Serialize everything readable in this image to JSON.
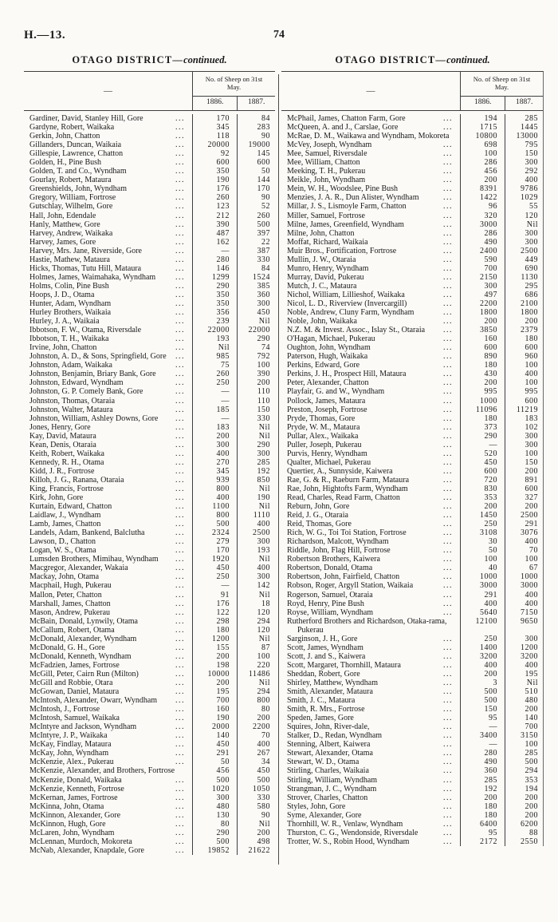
{
  "page": {
    "doc_ref": "H.—13.",
    "page_number": "74"
  },
  "table_header": {
    "name_placeholder": "—",
    "sheep_header": "No. of Sheep on 31st May.",
    "year1": "1886.",
    "year2": "1887."
  },
  "columns": [
    {
      "title_main": "OTAGO DISTRICT",
      "title_dash": "—",
      "title_cont": "continued.",
      "rows": [
        [
          "Gardiner, David, Stanley Hill, Gore",
          "170",
          "84"
        ],
        [
          "Gardyne, Robert, Waikaka",
          "345",
          "283"
        ],
        [
          "Gerkin, John, Chatton",
          "118",
          "90"
        ],
        [
          "Gillanders, Duncan, Waikaia",
          "20000",
          "19000"
        ],
        [
          "Gillespie, Lawrence, Chatton",
          "92",
          "145"
        ],
        [
          "Golden, H., Pine Bush",
          "600",
          "600"
        ],
        [
          "Golden, T. and Co., Wyndham",
          "350",
          "50"
        ],
        [
          "Gourlay, Robert, Mataura",
          "190",
          "144"
        ],
        [
          "Greenshields, John, Wyndham",
          "176",
          "170"
        ],
        [
          "Gregory, William, Fortrose",
          "260",
          "90"
        ],
        [
          "Gutschlay, Wilhelm, Gore",
          "123",
          "52"
        ],
        [
          "Hall, John, Edendale",
          "212",
          "260"
        ],
        [
          "Hanly, Matthew, Gore",
          "390",
          "500"
        ],
        [
          "Harvey, Andrew, Waikaka",
          "487",
          "397"
        ],
        [
          "Harvey, James, Gore",
          "162",
          "22"
        ],
        [
          "Harvey, Mrs. Jane, Riverside, Gore",
          "—",
          "387"
        ],
        [
          "Hastie, Mathew, Mataura",
          "280",
          "330"
        ],
        [
          "Hicks, Thomas, Tutu Hill, Mataura",
          "146",
          "84"
        ],
        [
          "Holmes, James, Waimahaka, Wyndham",
          "1299",
          "1524"
        ],
        [
          "Holms, Colin, Pine Bush",
          "290",
          "385"
        ],
        [
          "Hoops, J. D., Otama",
          "350",
          "360"
        ],
        [
          "Hunter, Adam, Wyndham",
          "350",
          "300"
        ],
        [
          "Hurley Brothers, Waikaia",
          "356",
          "450"
        ],
        [
          "Hurley, J. A., Waikaia",
          "239",
          "Nil"
        ],
        [
          "Ibbotson, F. W., Otama, Riversdale",
          "22000",
          "22000"
        ],
        [
          "Ibbotson, T. H., Waikaka",
          "193",
          "290"
        ],
        [
          "Irvine, John, Chatton",
          "Nil",
          "74"
        ],
        [
          "Johnston, A. D., & Sons, Springfield, Gore",
          "985",
          "792"
        ],
        [
          "Johnston, Adam, Waikaka",
          "75",
          "100"
        ],
        [
          "Johnston, Benjamin, Briary Bank, Gore",
          "260",
          "390"
        ],
        [
          "Johnston, Edward, Wyndham",
          "250",
          "200"
        ],
        [
          "Johnston, G. P. Comely Bank, Gore",
          "—",
          "110"
        ],
        [
          "Johnston, Thomas, Otaraia",
          "—",
          "110"
        ],
        [
          "Johnston, Walter, Mataura",
          "185",
          "150"
        ],
        [
          "Johnston, William, Ashley Downs, Gore",
          "—",
          "330"
        ],
        [
          "Jones, Henry, Gore",
          "183",
          "Nil"
        ],
        [
          "Kay, David, Mataura",
          "200",
          "Nil"
        ],
        [
          "Kean, Denis, Otaraia",
          "300",
          "290"
        ],
        [
          "Keith, Robert, Waikaka",
          "400",
          "300"
        ],
        [
          "Kennedy, R. H., Otama",
          "270",
          "285"
        ],
        [
          "Kidd, J. R., Fortrose",
          "345",
          "192"
        ],
        [
          "Killoh, J. G., Ranana, Otaraia",
          "939",
          "850"
        ],
        [
          "King, Francis, Fortrose",
          "800",
          "Nil"
        ],
        [
          "Kirk, John, Gore",
          "400",
          "190"
        ],
        [
          "Kurtain, Edward, Chatton",
          "1100",
          "Nil"
        ],
        [
          "Laidlaw, J., Wyndham",
          "800",
          "1110"
        ],
        [
          "Lamb, James, Chatton",
          "500",
          "400"
        ],
        [
          "Landels, Adam, Bankend, Balclutha",
          "2324",
          "2500"
        ],
        [
          "Lawson, D., Chatton",
          "279",
          "300"
        ],
        [
          "Logan, W. S., Otama",
          "170",
          "193"
        ],
        [
          "Lumsden Brothers, Mimihau, Wyndham",
          "1920",
          "Nil"
        ],
        [
          "Macgregor, Alexander, Wakaia",
          "450",
          "400"
        ],
        [
          "Mackay, John, Otama",
          "250",
          "300"
        ],
        [
          "Macphail, Hugh, Pukerau",
          "—",
          "142"
        ],
        [
          "Mallon, Peter, Chatton",
          "91",
          "Nil"
        ],
        [
          "Marshall, James, Chatton",
          "176",
          "18"
        ],
        [
          "Mason, Andrew, Pukerau",
          "122",
          "120"
        ],
        [
          "McBain, Donald, Lynwily, Otama",
          "298",
          "294"
        ],
        [
          "McCallum, Robert, Otama",
          "180",
          "120"
        ],
        [
          "McDonald, Alexander, Wyndham",
          "1200",
          "Nil"
        ],
        [
          "McDonald, G. H., Gore",
          "155",
          "87"
        ],
        [
          "McDonald, Kenneth, Wyndham",
          "200",
          "100"
        ],
        [
          "McFadzien, James, Fortrose",
          "198",
          "220"
        ],
        [
          "McGill, Peter, Cairn Run (Milton)",
          "10000",
          "11486"
        ],
        [
          "McGill and Robbie, Otara",
          "200",
          "Nil"
        ],
        [
          "McGowan, Daniel, Mataura",
          "195",
          "294"
        ],
        [
          "McIntosh, Alexander, Owarr, Wyndham",
          "700",
          "800"
        ],
        [
          "McIntosh, J., Fortrose",
          "160",
          "80"
        ],
        [
          "McIntosh, Samuel, Waikaka",
          "190",
          "200"
        ],
        [
          "McIntyre and Jackson, Wyndham",
          "2000",
          "2200"
        ],
        [
          "McIntyre, J. P., Waikaka",
          "140",
          "70"
        ],
        [
          "McKay, Findlay, Mataura",
          "450",
          "400"
        ],
        [
          "McKay, John, Wyndham",
          "291",
          "267"
        ],
        [
          "McKenzie, Alex., Pukerau",
          "50",
          "34"
        ],
        [
          "McKenzie, Alexander, and Brothers, Fortrose",
          "456",
          "450",
          1
        ],
        [
          "McKenzie, Donald, Waikaka",
          "500",
          "500"
        ],
        [
          "McKenzie, Kenneth, Fortrose",
          "1020",
          "1050"
        ],
        [
          "McKernan, James, Fortrose",
          "300",
          "330"
        ],
        [
          "McKinna, John, Otama",
          "480",
          "580"
        ],
        [
          "McKinnon, Alexander, Gore",
          "130",
          "90"
        ],
        [
          "McKinnon, Hugh, Gore",
          "80",
          "Nil"
        ],
        [
          "McLaren, John, Wyndham",
          "290",
          "200"
        ],
        [
          "McLennan, Murdoch, Mokoreta",
          "500",
          "498"
        ],
        [
          "McNab, Alexander, Knapdale, Gore",
          "19852",
          "21622"
        ]
      ]
    },
    {
      "title_main": "OTAGO DISTRICT",
      "title_dash": "—",
      "title_cont": "continued.",
      "rows": [
        [
          "McPhail, James, Chatton Farm, Gore",
          "194",
          "285"
        ],
        [
          "McQueen, A. and J., Carslae, Gore",
          "1715",
          "1445"
        ],
        [
          "McRae, D. M., Waikawa and Wyndham, Mokoreta",
          "10800",
          "13000",
          1
        ],
        [
          "McVey, Joseph, Wyndham",
          "698",
          "795"
        ],
        [
          "Mee, Samuel, Riversdale",
          "100",
          "150"
        ],
        [
          "Mee, William, Chatton",
          "286",
          "300"
        ],
        [
          "Meeking, T. H., Pukerau",
          "456",
          "292"
        ],
        [
          "Meikle, John, Wyndham",
          "200",
          "400"
        ],
        [
          "Mein, W. H., Woodslee, Pine Bush",
          "8391",
          "9786"
        ],
        [
          "Menzies, J. A. R., Dun Alister, Wyndham",
          "1422",
          "1029"
        ],
        [
          "Millar, J. S., Lismoyle Farm, Chatton",
          "96",
          "55"
        ],
        [
          "Miller, Samuel, Fortrose",
          "320",
          "120"
        ],
        [
          "Milne, James, Greenfield, Wyndham",
          "3000",
          "Nil"
        ],
        [
          "Milne, John, Chatton",
          "286",
          "300"
        ],
        [
          "Moffat, Richard, Waikaia",
          "490",
          "300"
        ],
        [
          "Muir Bros., Fortification, Fortrose",
          "2400",
          "2500"
        ],
        [
          "Mullin, J. W., Otaraia",
          "590",
          "449"
        ],
        [
          "Munro, Henry, Wyndham",
          "700",
          "690"
        ],
        [
          "Murray, David, Pukerau",
          "2150",
          "1130"
        ],
        [
          "Mutch, J. C., Mataura",
          "300",
          "295"
        ],
        [
          "Nichol, William, Lillieshof, Waikaka",
          "497",
          "686"
        ],
        [
          "Nicol, L. D., Riverview (Invercargill)",
          "2200",
          "2100"
        ],
        [
          "Noble, Andrew, Cluny Farm, Wyndham",
          "1800",
          "1800"
        ],
        [
          "Noble, John, Waikaka",
          "200",
          "200"
        ],
        [
          "N.Z. M. & Invest. Assoc., Islay St., Otaraia",
          "3850",
          "2379"
        ],
        [
          "O'Hagan, Michael, Pukerau",
          "160",
          "180"
        ],
        [
          "Oughton, John, Wyndham",
          "600",
          "600"
        ],
        [
          "Paterson, Hugh, Waikaka",
          "890",
          "960"
        ],
        [
          "Perkins, Edward, Gore",
          "180",
          "100"
        ],
        [
          "Perkins, J. H., Prospect Hill, Mataura",
          "430",
          "400"
        ],
        [
          "Peter, Alexander, Chatton",
          "200",
          "100"
        ],
        [
          "Playfair, G. and W., Wyndham",
          "995",
          "995"
        ],
        [
          "Pollock, James, Mataura",
          "1000",
          "600"
        ],
        [
          "Preston, Joseph, Fortrose",
          "11096",
          "11219"
        ],
        [
          "Pryde, Thomas, Gore",
          "180",
          "183"
        ],
        [
          "Pryde, W. M., Mataura",
          "373",
          "102"
        ],
        [
          "Pullar, Alex., Waikaka",
          "290",
          "300"
        ],
        [
          "Puller, Joseph, Pukerau",
          "—",
          "300"
        ],
        [
          "Purvis, Henry, Wyndham",
          "520",
          "100"
        ],
        [
          "Qualter, Michael, Pukerau",
          "450",
          "150"
        ],
        [
          "Quertier, A., Sunnyside, Kaiwera",
          "600",
          "200"
        ],
        [
          "Rae, G. & R., Raeburn Farm, Mataura",
          "720",
          "891"
        ],
        [
          "Rae, John, Hightofts Farm, Wyndham",
          "830",
          "600"
        ],
        [
          "Read, Charles, Read Farm, Chatton",
          "353",
          "327"
        ],
        [
          "Reburn, John, Gore",
          "200",
          "200"
        ],
        [
          "Reid, J. G., Otaraia",
          "1450",
          "2500"
        ],
        [
          "Reid, Thomas, Gore",
          "250",
          "291"
        ],
        [
          "Rich, W. G., Toi Toi Station, Fortrose",
          "3108",
          "3076"
        ],
        [
          "Richardson, Malcott, Wyndham",
          "30",
          "400"
        ],
        [
          "Riddle, John, Flag Hill, Fortrose",
          "50",
          "70"
        ],
        [
          "Robertson Brothers, Kaiwera",
          "100",
          "100"
        ],
        [
          "Robertson, Donald, Otama",
          "40",
          "67"
        ],
        [
          "Robertson, John, Fairfield, Chatton",
          "1000",
          "1000"
        ],
        [
          "Robson, Roger, Argyll Station, Waikaia",
          "3000",
          "3000"
        ],
        [
          "Rogerson, Samuel, Otaraia",
          "291",
          "400"
        ],
        [
          "Royd, Henry, Pine Bush",
          "400",
          "400"
        ],
        [
          "Royse, William, Wyndham",
          "5640",
          "7150"
        ],
        [
          "Rutherford Brothers and Richardson, Otaka-rama, Pukerau",
          "12100",
          "9650",
          1
        ],
        [
          "Sarginson, J. H., Gore",
          "250",
          "300"
        ],
        [
          "Scott, James, Wyndham",
          "1400",
          "1200"
        ],
        [
          "Scott, J. and S., Kaiwera",
          "3200",
          "3200"
        ],
        [
          "Scott, Margaret, Thornhill, Mataura",
          "400",
          "400"
        ],
        [
          "Sheddan, Robert, Gore",
          "200",
          "195"
        ],
        [
          "Shirley, Matthew, Wyndham",
          "3",
          "Nil"
        ],
        [
          "Smith, Alexander, Mataura",
          "500",
          "510"
        ],
        [
          "Smith, J. C., Mataura",
          "500",
          "480"
        ],
        [
          "Smith, R. Mrs., Fortrose",
          "150",
          "200"
        ],
        [
          "Speden, James, Gore",
          "95",
          "140"
        ],
        [
          "Squires, John, River-dale,",
          "—",
          "700"
        ],
        [
          "Stalker, D., Redan, Wyndham",
          "3400",
          "3150"
        ],
        [
          "Stenning, Albert, Kaiwera",
          "—",
          "100"
        ],
        [
          "Stewart, Alexander, Otama",
          "280",
          "285"
        ],
        [
          "Stewart, W. D., Otama",
          "490",
          "500"
        ],
        [
          "Stirling, Charles, Waikaia",
          "360",
          "294"
        ],
        [
          "Stirling, William, Wyndham",
          "285",
          "353"
        ],
        [
          "Strangman, J. C., Wyndham",
          "192",
          "194"
        ],
        [
          "Strover, Charles, Chatton",
          "200",
          "200"
        ],
        [
          "Styles, John, Gore",
          "180",
          "200"
        ],
        [
          "Syme, Alexander, Gore",
          "180",
          "200"
        ],
        [
          "Thornhill, W. R., Venlaw, Wyndham",
          "6400",
          "6200"
        ],
        [
          "Thurston, C. G., Wendonside, Riversdale",
          "95",
          "88"
        ],
        [
          "Trotter, W. S., Robin Hood, Wyndham",
          "2172",
          "2550"
        ]
      ]
    }
  ]
}
